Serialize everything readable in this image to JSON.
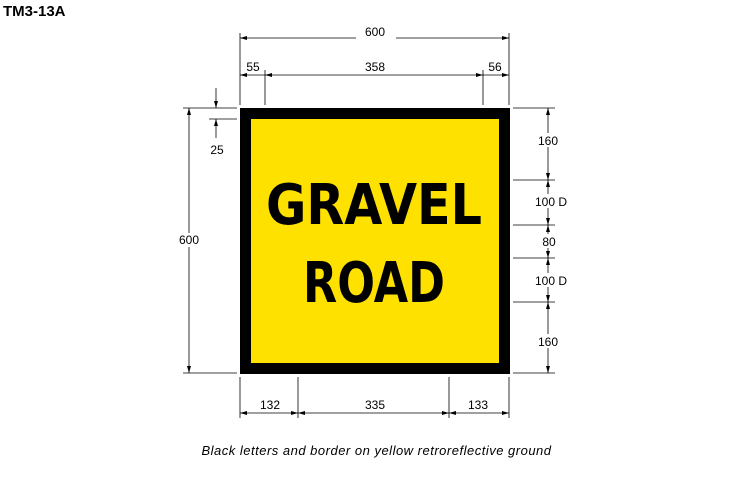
{
  "sign": {
    "code": "TM3-13A",
    "line1": "GRAVEL",
    "line2": "ROAD",
    "background_color": "#FFE100",
    "border_color": "#000000",
    "text_color": "#000000"
  },
  "dimensions": {
    "overall_width": "600",
    "top_left": "55",
    "top_middle": "358",
    "top_right": "56",
    "overall_height": "600",
    "border": "25",
    "right_top_margin": "160",
    "letter_height_1": "100 D",
    "line_gap": "80",
    "letter_height_2": "100 D",
    "right_bottom_margin": "160",
    "bottom_left": "132",
    "bottom_middle": "335",
    "bottom_right": "133"
  },
  "caption": "Black letters and border on yellow retroreflective ground"
}
